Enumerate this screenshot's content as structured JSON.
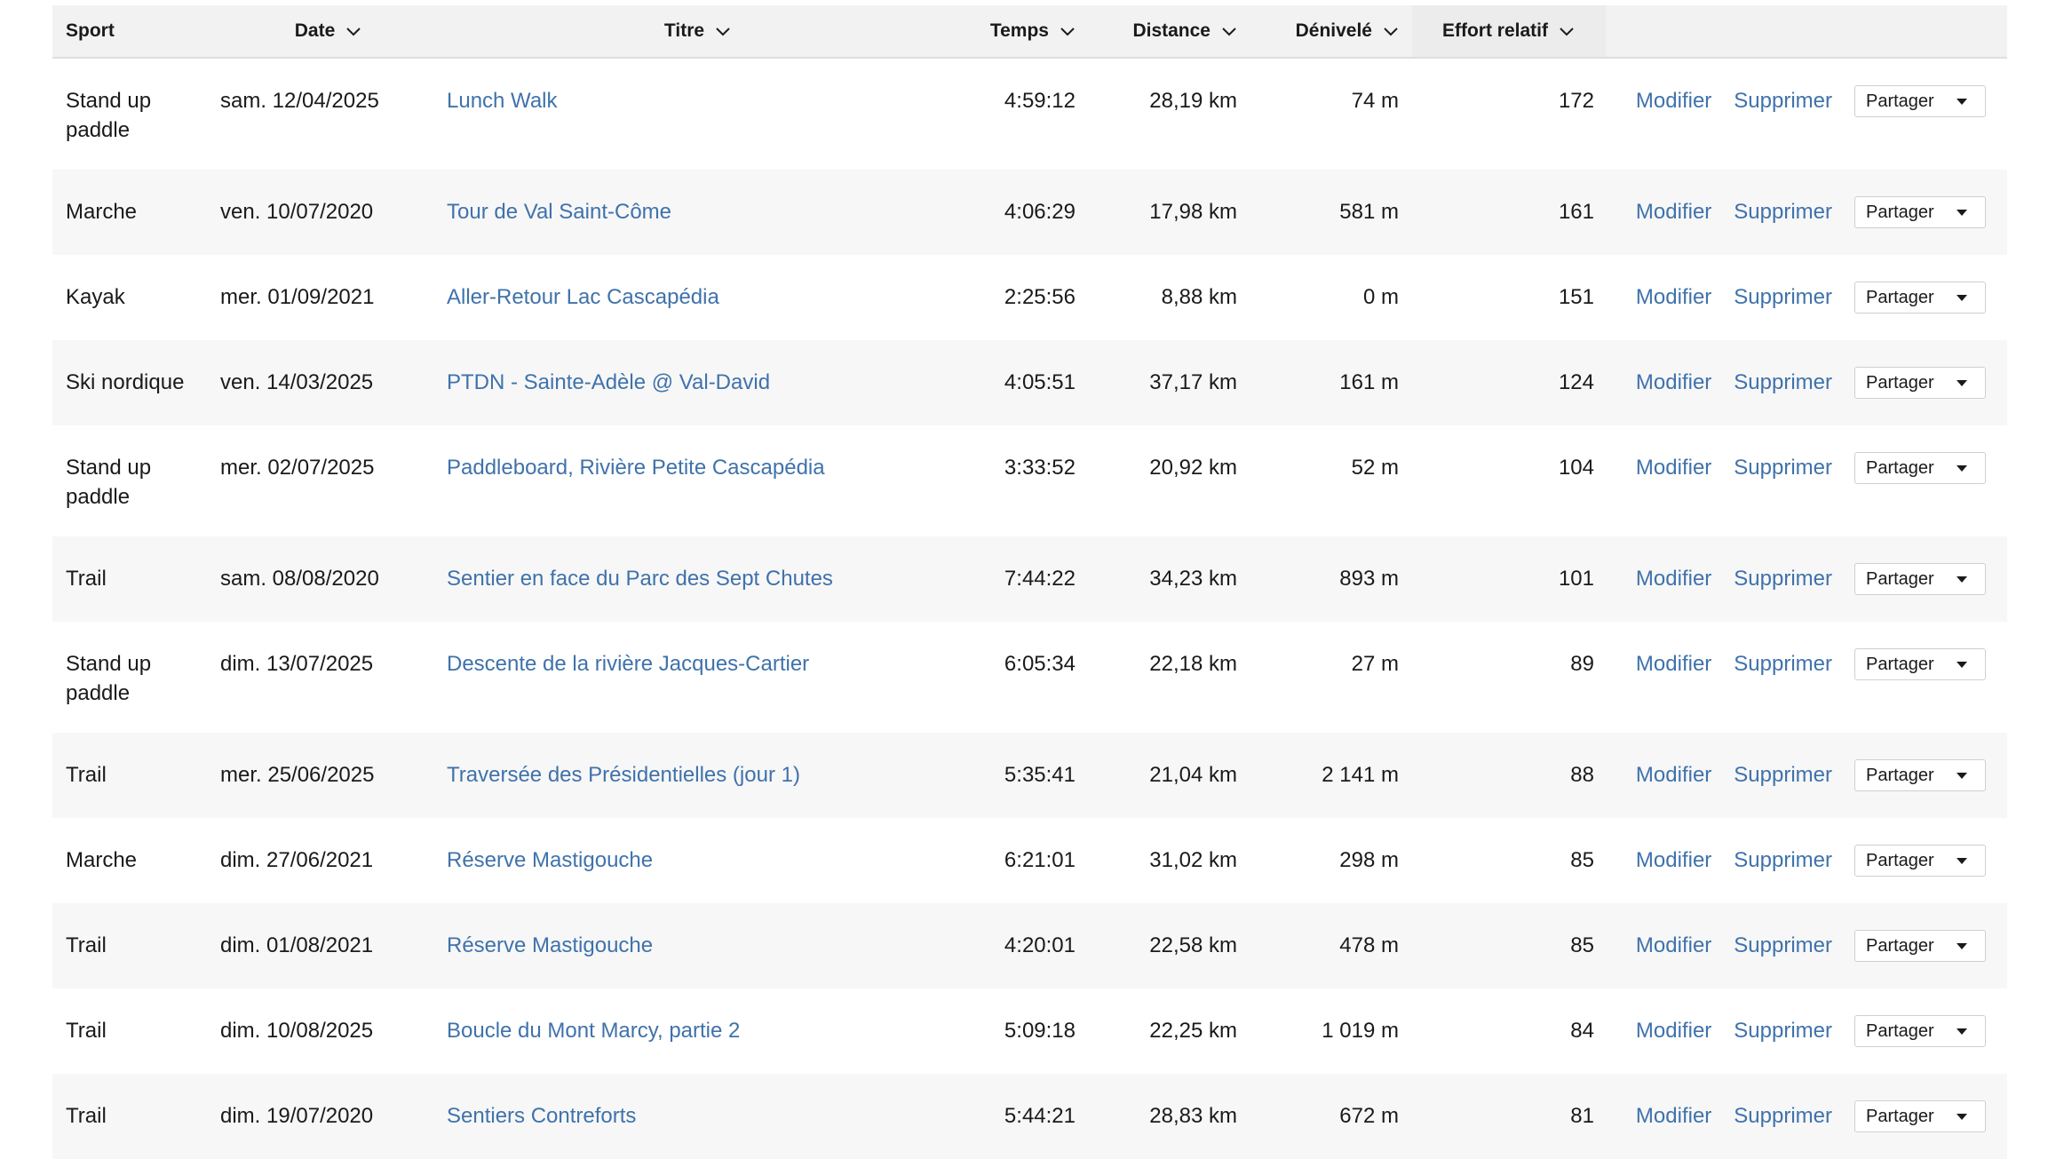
{
  "header": {
    "sport": "Sport",
    "date": "Date",
    "title": "Titre",
    "time": "Temps",
    "distance": "Distance",
    "elevation": "Dénivelé",
    "effort": "Effort relatif"
  },
  "actions": {
    "edit": "Modifier",
    "delete": "Supprimer",
    "share": "Partager"
  },
  "colors": {
    "link": "#3f72ab",
    "header_bg": "#f2f2f2",
    "stripe_bg": "#f7f7f7"
  },
  "rows": [
    {
      "sport": "Stand up paddle",
      "date": "sam. 12/04/2025",
      "title": "Lunch Walk",
      "time": "4:59:12",
      "distance": "28,19 km",
      "elevation": "74 m",
      "effort": "172"
    },
    {
      "sport": "Marche",
      "date": "ven. 10/07/2020",
      "title": "Tour de Val Saint-Côme",
      "time": "4:06:29",
      "distance": "17,98 km",
      "elevation": "581 m",
      "effort": "161"
    },
    {
      "sport": "Kayak",
      "date": "mer. 01/09/2021",
      "title": "Aller-Retour Lac Cascapédia",
      "time": "2:25:56",
      "distance": "8,88 km",
      "elevation": "0 m",
      "effort": "151"
    },
    {
      "sport": "Ski nordique",
      "date": "ven. 14/03/2025",
      "title": "PTDN - Sainte-Adèle @ Val-David",
      "time": "4:05:51",
      "distance": "37,17 km",
      "elevation": "161 m",
      "effort": "124"
    },
    {
      "sport": "Stand up paddle",
      "date": "mer. 02/07/2025",
      "title": "Paddleboard, Rivière Petite Cascapédia",
      "time": "3:33:52",
      "distance": "20,92 km",
      "elevation": "52 m",
      "effort": "104"
    },
    {
      "sport": "Trail",
      "date": "sam. 08/08/2020",
      "title": "Sentier en face du Parc des Sept Chutes",
      "time": "7:44:22",
      "distance": "34,23 km",
      "elevation": "893 m",
      "effort": "101"
    },
    {
      "sport": "Stand up paddle",
      "date": "dim. 13/07/2025",
      "title": "Descente de la rivière Jacques-Cartier",
      "time": "6:05:34",
      "distance": "22,18 km",
      "elevation": "27 m",
      "effort": "89"
    },
    {
      "sport": "Trail",
      "date": "mer. 25/06/2025",
      "title": "Traversée des Présidentielles (jour 1)",
      "time": "5:35:41",
      "distance": "21,04 km",
      "elevation": "2 141 m",
      "effort": "88"
    },
    {
      "sport": "Marche",
      "date": "dim. 27/06/2021",
      "title": "Réserve Mastigouche",
      "time": "6:21:01",
      "distance": "31,02 km",
      "elevation": "298 m",
      "effort": "85"
    },
    {
      "sport": "Trail",
      "date": "dim. 01/08/2021",
      "title": "Réserve Mastigouche",
      "time": "4:20:01",
      "distance": "22,58 km",
      "elevation": "478 m",
      "effort": "85"
    },
    {
      "sport": "Trail",
      "date": "dim. 10/08/2025",
      "title": "Boucle du Mont Marcy, partie 2",
      "time": "5:09:18",
      "distance": "22,25 km",
      "elevation": "1 019 m",
      "effort": "84"
    },
    {
      "sport": "Trail",
      "date": "dim. 19/07/2020",
      "title": "Sentiers Contreforts",
      "time": "5:44:21",
      "distance": "28,83 km",
      "elevation": "672 m",
      "effort": "81"
    }
  ]
}
